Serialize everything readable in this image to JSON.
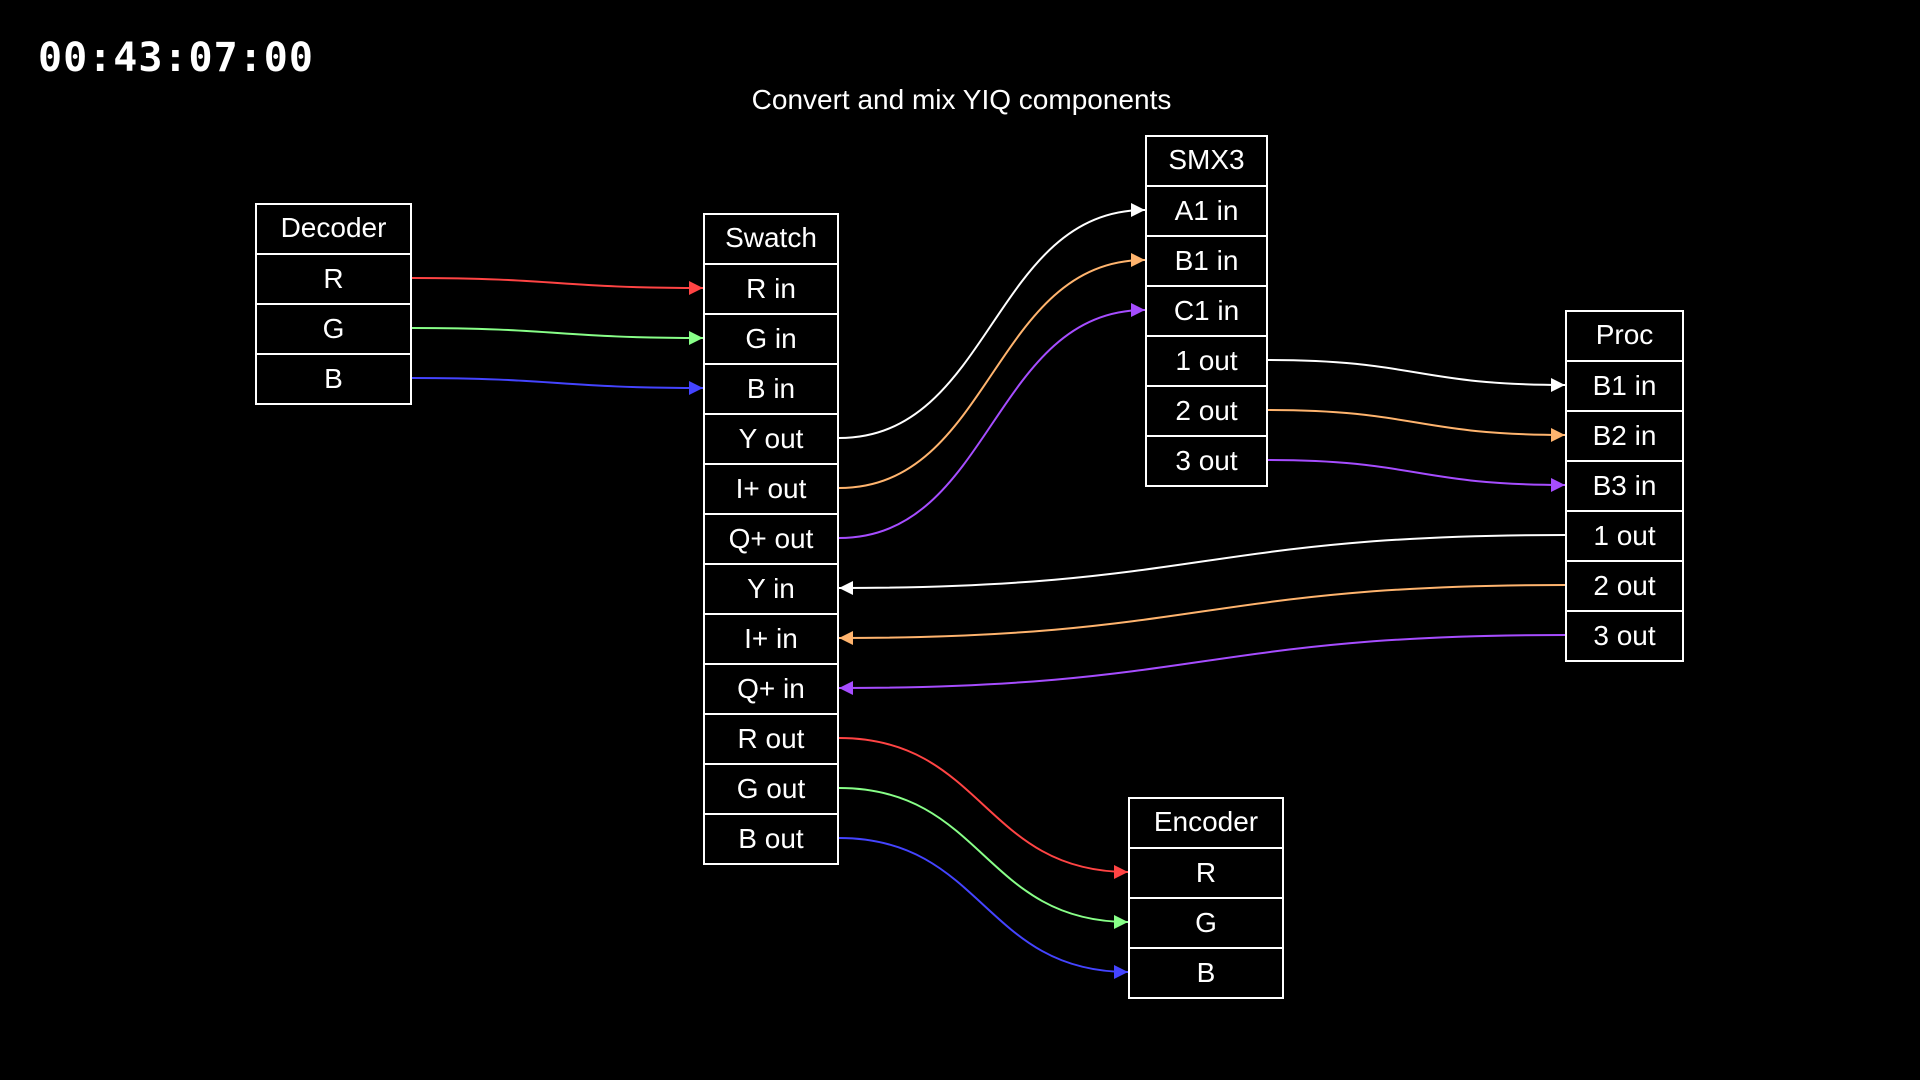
{
  "timecode": "00:43:07:00",
  "title": "Convert and mix YIQ components",
  "colors": {
    "background": "#000000",
    "foreground": "#ffffff",
    "red": "#ff4444",
    "green": "#88ff88",
    "blue": "#4444ff",
    "orange": "#ffb46e",
    "purple": "#a64dff"
  },
  "nodes": [
    {
      "id": "decoder",
      "title": "Decoder",
      "ports": [
        "R",
        "G",
        "B"
      ]
    },
    {
      "id": "swatch",
      "title": "Swatch",
      "ports": [
        "R in",
        "G in",
        "B in",
        "Y out",
        "I+ out",
        "Q+ out",
        "Y in",
        "I+ in",
        "Q+ in",
        "R out",
        "G out",
        "B out"
      ]
    },
    {
      "id": "smx3",
      "title": "SMX3",
      "ports": [
        "A1 in",
        "B1 in",
        "C1 in",
        "1 out",
        "2 out",
        "3 out"
      ]
    },
    {
      "id": "proc",
      "title": "Proc",
      "ports": [
        "B1 in",
        "B2 in",
        "B3 in",
        "1 out",
        "2 out",
        "3 out"
      ]
    },
    {
      "id": "encoder",
      "title": "Encoder",
      "ports": [
        "R",
        "G",
        "B"
      ]
    }
  ],
  "connections": [
    {
      "from": "decoder.R",
      "to": "swatch.R in",
      "color": "red"
    },
    {
      "from": "decoder.G",
      "to": "swatch.G in",
      "color": "green"
    },
    {
      "from": "decoder.B",
      "to": "swatch.B in",
      "color": "blue"
    },
    {
      "from": "swatch.Y out",
      "to": "smx3.A1 in",
      "color": "foreground"
    },
    {
      "from": "swatch.I+ out",
      "to": "smx3.B1 in",
      "color": "orange"
    },
    {
      "from": "swatch.Q+ out",
      "to": "smx3.C1 in",
      "color": "purple"
    },
    {
      "from": "smx3.1 out",
      "to": "proc.B1 in",
      "color": "foreground"
    },
    {
      "from": "smx3.2 out",
      "to": "proc.B2 in",
      "color": "orange"
    },
    {
      "from": "smx3.3 out",
      "to": "proc.B3 in",
      "color": "purple"
    },
    {
      "from": "proc.1 out",
      "to": "swatch.Y in",
      "color": "foreground"
    },
    {
      "from": "proc.2 out",
      "to": "swatch.I+ in",
      "color": "orange"
    },
    {
      "from": "proc.3 out",
      "to": "swatch.Q+ in",
      "color": "purple"
    },
    {
      "from": "swatch.R out",
      "to": "encoder.R",
      "color": "red"
    },
    {
      "from": "swatch.G out",
      "to": "encoder.G",
      "color": "green"
    },
    {
      "from": "swatch.B out",
      "to": "encoder.B",
      "color": "blue"
    }
  ]
}
